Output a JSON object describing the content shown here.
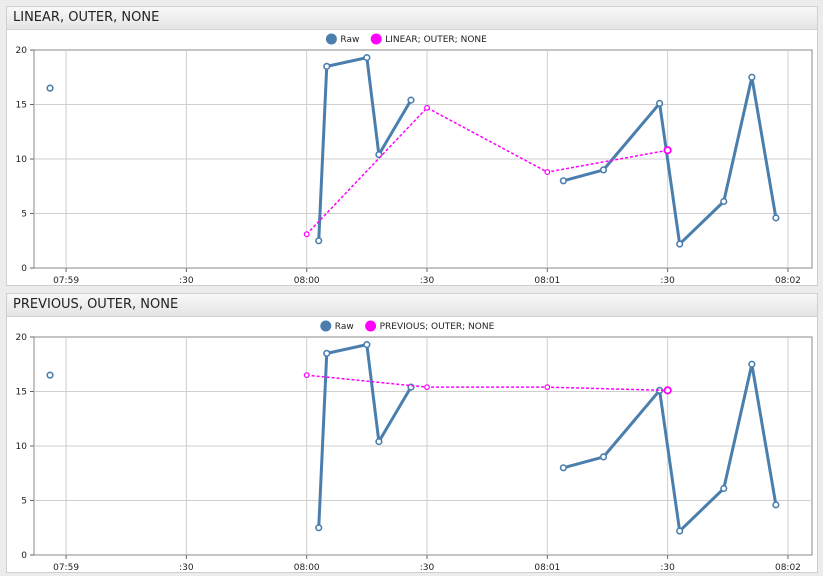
{
  "chart_data": [
    {
      "type": "line",
      "title": "LINEAR, OUTER, NONE",
      "legend": [
        "Raw",
        "LINEAR; OUTER; NONE"
      ],
      "legend_position": "top-center",
      "grid": true,
      "x_ticks": [
        "07:59",
        ":30",
        "08:00",
        ":30",
        "08:01",
        ":30",
        "08:02"
      ],
      "xlim": [
        "07:58:52",
        "08:02:06"
      ],
      "ylim": [
        0,
        20
      ],
      "y_ticks": [
        "0",
        "5",
        "10",
        "15",
        "20"
      ],
      "colors": {
        "raw": "#4a7fad",
        "interp": "#ff00ff"
      },
      "series": [
        {
          "name": "Raw",
          "x": [
            "07:58:56",
            "08:00:03",
            "08:00:05",
            "08:00:15",
            "08:00:18",
            "08:00:26",
            "08:01:04",
            "08:01:14",
            "08:01:28",
            "08:01:33",
            "08:01:44",
            "08:01:51",
            "08:01:57"
          ],
          "y": [
            16.5,
            2.5,
            18.5,
            19.3,
            10.4,
            15.4,
            8.0,
            9.0,
            15.1,
            2.2,
            6.1,
            17.5,
            4.6
          ],
          "segments": [
            [
              0,
              0
            ],
            [
              1,
              5
            ],
            [
              6,
              12
            ]
          ]
        },
        {
          "name": "LINEAR; OUTER; NONE",
          "x": [
            "08:00:00",
            "08:00:30",
            "08:01:00",
            "08:01:30"
          ],
          "y": [
            3.1,
            14.7,
            8.8,
            10.8
          ],
          "style": "dashed"
        }
      ]
    },
    {
      "type": "line",
      "title": "PREVIOUS, OUTER, NONE",
      "legend": [
        "Raw",
        "PREVIOUS; OUTER; NONE"
      ],
      "legend_position": "top-center",
      "grid": true,
      "x_ticks": [
        "07:59",
        ":30",
        "08:00",
        ":30",
        "08:01",
        ":30",
        "08:02"
      ],
      "xlim": [
        "07:58:52",
        "08:02:06"
      ],
      "ylim": [
        0,
        20
      ],
      "y_ticks": [
        "0",
        "5",
        "10",
        "15",
        "20"
      ],
      "colors": {
        "raw": "#4a7fad",
        "interp": "#ff00ff"
      },
      "series": [
        {
          "name": "Raw",
          "x": [
            "07:58:56",
            "08:00:03",
            "08:00:05",
            "08:00:15",
            "08:00:18",
            "08:00:26",
            "08:01:04",
            "08:01:14",
            "08:01:28",
            "08:01:33",
            "08:01:44",
            "08:01:51",
            "08:01:57"
          ],
          "y": [
            16.5,
            2.5,
            18.5,
            19.3,
            10.4,
            15.4,
            8.0,
            9.0,
            15.1,
            2.2,
            6.1,
            17.5,
            4.6
          ],
          "segments": [
            [
              0,
              0
            ],
            [
              1,
              5
            ],
            [
              6,
              12
            ]
          ]
        },
        {
          "name": "PREVIOUS; OUTER; NONE",
          "x": [
            "08:00:00",
            "08:00:30",
            "08:01:00",
            "08:01:30"
          ],
          "y": [
            16.5,
            15.4,
            15.4,
            15.1
          ],
          "style": "dashed"
        }
      ]
    }
  ]
}
